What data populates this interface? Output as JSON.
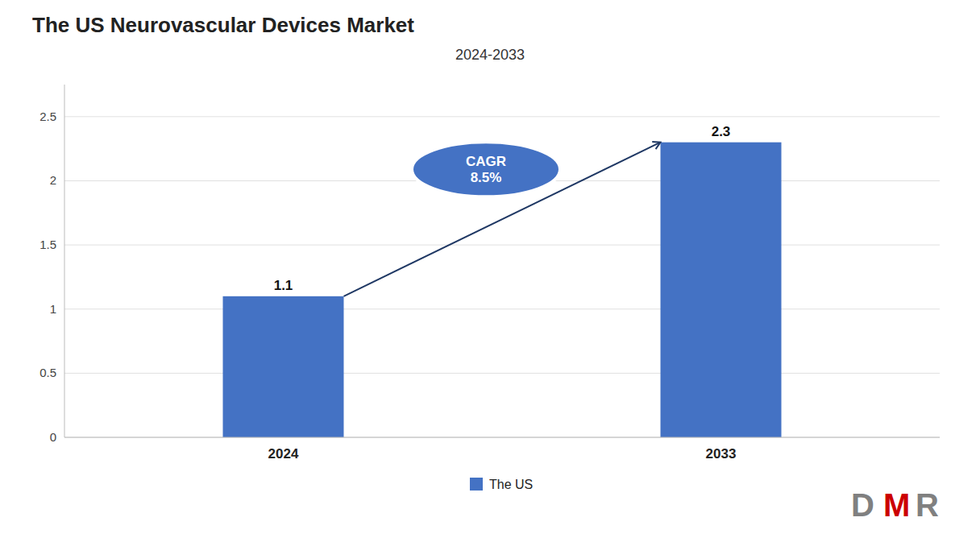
{
  "chart_data": {
    "type": "bar",
    "title": "The US Neurovascular Devices Market",
    "subtitle": "2024-2033",
    "categories": [
      "2024",
      "2033"
    ],
    "series": [
      {
        "name": "The US",
        "color": "#4472C4",
        "values": [
          1.1,
          2.3
        ]
      }
    ],
    "ylim": [
      0,
      2.75
    ],
    "yticks": [
      0,
      0.5,
      1.0,
      1.5,
      2.0,
      2.5
    ],
    "grid": true,
    "legend": "bottom",
    "data_labels": true,
    "annotations": [
      "CAGR",
      "8.5%"
    ],
    "logo": [
      {
        "text": "D",
        "color": "#808080"
      },
      {
        "text": "M",
        "color": "#CC0000"
      },
      {
        "text": "R",
        "color": "#808080"
      }
    ]
  }
}
